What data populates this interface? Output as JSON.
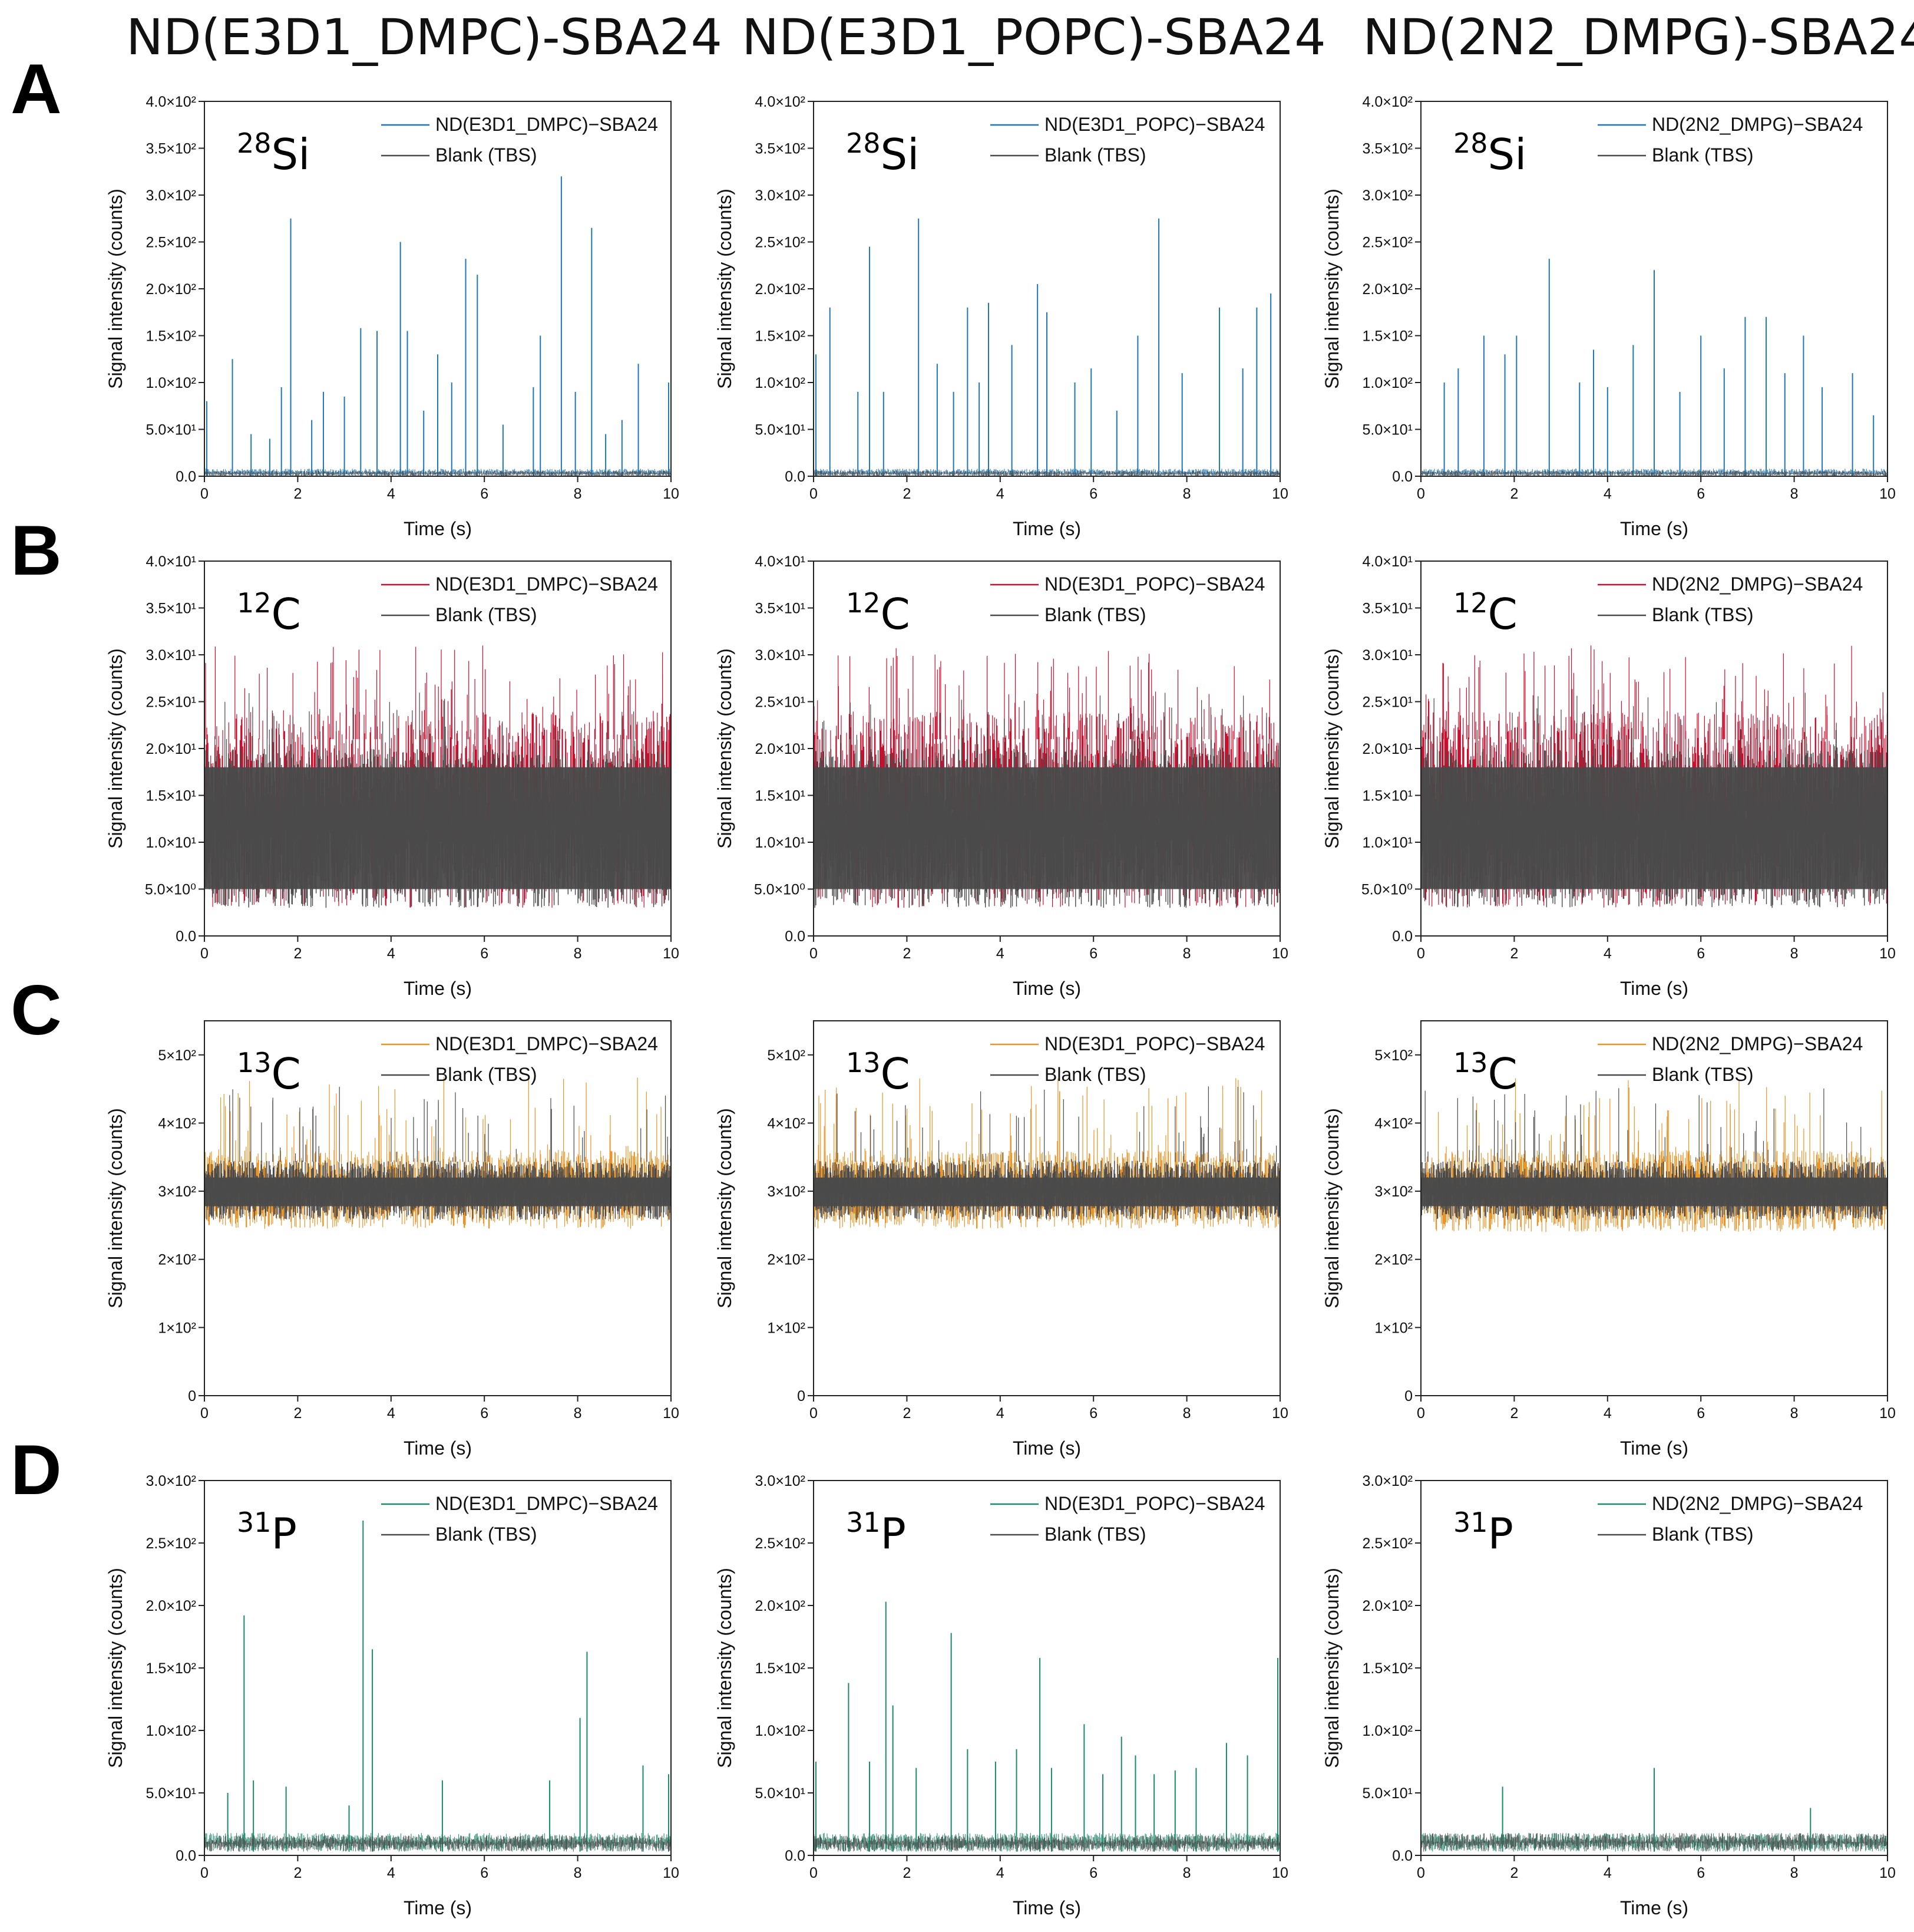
{
  "figure": {
    "column_titles": [
      "ND(E3D1_DMPC)-SBA24",
      "ND(E3D1_POPC)-SBA24",
      "ND(2N2_DMPG)-SBA24"
    ],
    "row_letters": [
      "A",
      "B",
      "C",
      "D"
    ],
    "xlabel": "Time (s)",
    "ylabel": "Signal intensity (counts)",
    "blank_legend": "Blank (TBS)",
    "colors": {
      "blank": "#4a4a4a",
      "Si": "#1f77b4",
      "C12": "#c8102e",
      "C13": "#e8952a",
      "P": "#1a8a6b"
    }
  },
  "chart_data": [
    {
      "type": "line",
      "row": "A",
      "panel": "A1",
      "isotope_mass": "28",
      "isotope_symbol": "Si",
      "color_key": "Si",
      "series": [
        {
          "name": "ND(E3D1_DMPC)−SBA24"
        },
        {
          "name": "Blank (TBS)"
        }
      ],
      "xlim": [
        0,
        10
      ],
      "ylim": [
        0,
        400
      ],
      "yticks": [
        0,
        50,
        100,
        150,
        200,
        250,
        300,
        350,
        400
      ],
      "ytick_labels": [
        "0.0",
        "5.0×10¹",
        "1.0×10²",
        "1.5×10²",
        "2.0×10²",
        "2.5×10²",
        "3.0×10²",
        "3.5×10²",
        "4.0×10²"
      ],
      "xticks": [
        0,
        2,
        4,
        6,
        8,
        10
      ],
      "baseline": [
        0,
        8
      ],
      "blank_band": [
        0,
        6
      ],
      "peaks": [
        [
          0.05,
          80
        ],
        [
          0.6,
          125
        ],
        [
          1.0,
          45
        ],
        [
          1.4,
          40
        ],
        [
          1.65,
          95
        ],
        [
          1.85,
          275
        ],
        [
          2.3,
          60
        ],
        [
          2.55,
          90
        ],
        [
          3.0,
          85
        ],
        [
          3.35,
          158
        ],
        [
          3.7,
          155
        ],
        [
          4.2,
          250
        ],
        [
          4.35,
          155
        ],
        [
          4.7,
          70
        ],
        [
          5.0,
          130
        ],
        [
          5.3,
          100
        ],
        [
          5.6,
          232
        ],
        [
          5.85,
          215
        ],
        [
          6.4,
          55
        ],
        [
          7.05,
          95
        ],
        [
          7.2,
          150
        ],
        [
          7.65,
          320
        ],
        [
          7.95,
          90
        ],
        [
          8.3,
          265
        ],
        [
          8.6,
          45
        ],
        [
          8.95,
          60
        ],
        [
          9.3,
          120
        ],
        [
          9.95,
          100
        ]
      ]
    },
    {
      "type": "line",
      "row": "A",
      "panel": "A2",
      "isotope_mass": "28",
      "isotope_symbol": "Si",
      "color_key": "Si",
      "series": [
        {
          "name": "ND(E3D1_POPC)−SBA24"
        },
        {
          "name": "Blank (TBS)"
        }
      ],
      "xlim": [
        0,
        10
      ],
      "ylim": [
        0,
        400
      ],
      "yticks": [
        0,
        50,
        100,
        150,
        200,
        250,
        300,
        350,
        400
      ],
      "ytick_labels": [
        "0.0",
        "5.0×10¹",
        "1.0×10²",
        "1.5×10²",
        "2.0×10²",
        "2.5×10²",
        "3.0×10²",
        "3.5×10²",
        "4.0×10²"
      ],
      "xticks": [
        0,
        2,
        4,
        6,
        8,
        10
      ],
      "baseline": [
        0,
        8
      ],
      "blank_band": [
        0,
        6
      ],
      "peaks": [
        [
          0.05,
          130
        ],
        [
          0.35,
          180
        ],
        [
          0.95,
          90
        ],
        [
          1.2,
          245
        ],
        [
          1.5,
          90
        ],
        [
          2.25,
          275
        ],
        [
          2.65,
          120
        ],
        [
          3.0,
          90
        ],
        [
          3.3,
          180
        ],
        [
          3.55,
          100
        ],
        [
          3.75,
          185
        ],
        [
          4.25,
          140
        ],
        [
          4.8,
          205
        ],
        [
          5.0,
          175
        ],
        [
          5.6,
          100
        ],
        [
          5.95,
          115
        ],
        [
          6.5,
          70
        ],
        [
          6.95,
          150
        ],
        [
          7.4,
          275
        ],
        [
          7.9,
          110
        ],
        [
          8.7,
          180
        ],
        [
          9.2,
          115
        ],
        [
          9.5,
          180
        ],
        [
          9.8,
          195
        ]
      ]
    },
    {
      "type": "line",
      "row": "A",
      "panel": "A3",
      "isotope_mass": "28",
      "isotope_symbol": "Si",
      "color_key": "Si",
      "series": [
        {
          "name": "ND(2N2_DMPG)−SBA24"
        },
        {
          "name": "Blank (TBS)"
        }
      ],
      "xlim": [
        0,
        10
      ],
      "ylim": [
        0,
        400
      ],
      "yticks": [
        0,
        50,
        100,
        150,
        200,
        250,
        300,
        350,
        400
      ],
      "ytick_labels": [
        "0.0",
        "5.0×10¹",
        "1.0×10²",
        "1.5×10²",
        "2.0×10²",
        "2.5×10²",
        "3.0×10²",
        "3.5×10²",
        "4.0×10²"
      ],
      "xticks": [
        0,
        2,
        4,
        6,
        8,
        10
      ],
      "baseline": [
        0,
        8
      ],
      "blank_band": [
        0,
        6
      ],
      "peaks": [
        [
          0.5,
          100
        ],
        [
          0.8,
          115
        ],
        [
          1.35,
          150
        ],
        [
          1.8,
          130
        ],
        [
          2.05,
          150
        ],
        [
          2.75,
          232
        ],
        [
          3.4,
          100
        ],
        [
          3.7,
          135
        ],
        [
          4.0,
          95
        ],
        [
          4.55,
          140
        ],
        [
          5.0,
          220
        ],
        [
          5.55,
          90
        ],
        [
          6.0,
          150
        ],
        [
          6.5,
          115
        ],
        [
          6.95,
          170
        ],
        [
          7.4,
          170
        ],
        [
          7.8,
          110
        ],
        [
          8.2,
          150
        ],
        [
          8.6,
          95
        ],
        [
          9.25,
          110
        ],
        [
          9.7,
          65
        ],
        [
          10.0,
          45
        ]
      ]
    },
    {
      "type": "line",
      "row": "B",
      "panel": "B1",
      "isotope_mass": "12",
      "isotope_symbol": "C",
      "color_key": "C12",
      "series": [
        {
          "name": "ND(E3D1_DMPC)−SBA24"
        },
        {
          "name": "Blank (TBS)"
        }
      ],
      "xlim": [
        0,
        10
      ],
      "ylim": [
        0,
        40
      ],
      "yticks": [
        0,
        5,
        10,
        15,
        20,
        25,
        30,
        35,
        40
      ],
      "ytick_labels": [
        "0.0",
        "5.0×10⁰",
        "1.0×10¹",
        "1.5×10¹",
        "2.0×10¹",
        "2.5×10¹",
        "3.0×10¹",
        "3.5×10¹",
        "4.0×10¹"
      ],
      "xticks": [
        0,
        2,
        4,
        6,
        8,
        10
      ],
      "baseline": [
        3,
        24
      ],
      "blank_band": [
        3,
        20
      ],
      "peaks": []
    },
    {
      "type": "line",
      "row": "B",
      "panel": "B2",
      "isotope_mass": "12",
      "isotope_symbol": "C",
      "color_key": "C12",
      "series": [
        {
          "name": "ND(E3D1_POPC)−SBA24"
        },
        {
          "name": "Blank (TBS)"
        }
      ],
      "xlim": [
        0,
        10
      ],
      "ylim": [
        0,
        40
      ],
      "yticks": [
        0,
        5,
        10,
        15,
        20,
        25,
        30,
        35,
        40
      ],
      "ytick_labels": [
        "0.0",
        "5.0×10⁰",
        "1.0×10¹",
        "1.5×10¹",
        "2.0×10¹",
        "2.5×10¹",
        "3.0×10¹",
        "3.5×10¹",
        "4.0×10¹"
      ],
      "xticks": [
        0,
        2,
        4,
        6,
        8,
        10
      ],
      "baseline": [
        3,
        24
      ],
      "blank_band": [
        3,
        20
      ],
      "peaks": []
    },
    {
      "type": "line",
      "row": "B",
      "panel": "B3",
      "isotope_mass": "12",
      "isotope_symbol": "C",
      "color_key": "C12",
      "series": [
        {
          "name": "ND(2N2_DMPG)−SBA24"
        },
        {
          "name": "Blank (TBS)"
        }
      ],
      "xlim": [
        0,
        10
      ],
      "ylim": [
        0,
        40
      ],
      "yticks": [
        0,
        5,
        10,
        15,
        20,
        25,
        30,
        35,
        40
      ],
      "ytick_labels": [
        "0.0",
        "5.0×10⁰",
        "1.0×10¹",
        "1.5×10¹",
        "2.0×10¹",
        "2.5×10¹",
        "3.0×10¹",
        "3.5×10¹",
        "4.0×10¹"
      ],
      "xticks": [
        0,
        2,
        4,
        6,
        8,
        10
      ],
      "baseline": [
        3,
        24
      ],
      "blank_band": [
        3,
        20
      ],
      "peaks": []
    },
    {
      "type": "line",
      "row": "C",
      "panel": "C1",
      "isotope_mass": "13",
      "isotope_symbol": "C",
      "color_key": "C13",
      "series": [
        {
          "name": "ND(E3D1_DMPC)−SBA24"
        },
        {
          "name": "Blank (TBS)"
        }
      ],
      "xlim": [
        0,
        10
      ],
      "ylim": [
        0,
        550
      ],
      "yticks": [
        0,
        100,
        200,
        300,
        400,
        500
      ],
      "ytick_labels": [
        "0",
        "1×10²",
        "2×10²",
        "3×10²",
        "4×10²",
        "5×10²"
      ],
      "xticks": [
        0,
        2,
        4,
        6,
        8,
        10
      ],
      "baseline": [
        245,
        360
      ],
      "blank_band": [
        258,
        345
      ],
      "peaks": []
    },
    {
      "type": "line",
      "row": "C",
      "panel": "C2",
      "isotope_mass": "13",
      "isotope_symbol": "C",
      "color_key": "C13",
      "series": [
        {
          "name": "ND(E3D1_POPC)−SBA24"
        },
        {
          "name": "Blank (TBS)"
        }
      ],
      "xlim": [
        0,
        10
      ],
      "ylim": [
        0,
        550
      ],
      "yticks": [
        0,
        100,
        200,
        300,
        400,
        500
      ],
      "ytick_labels": [
        "0",
        "1×10²",
        "2×10²",
        "3×10²",
        "4×10²",
        "5×10²"
      ],
      "xticks": [
        0,
        2,
        4,
        6,
        8,
        10
      ],
      "baseline": [
        245,
        360
      ],
      "blank_band": [
        258,
        345
      ],
      "peaks": []
    },
    {
      "type": "line",
      "row": "C",
      "panel": "C3",
      "isotope_mass": "13",
      "isotope_symbol": "C",
      "color_key": "C13",
      "series": [
        {
          "name": "ND(2N2_DMPG)−SBA24"
        },
        {
          "name": "Blank (TBS)"
        }
      ],
      "xlim": [
        0,
        10
      ],
      "ylim": [
        0,
        550
      ],
      "yticks": [
        0,
        100,
        200,
        300,
        400,
        500
      ],
      "ytick_labels": [
        "0",
        "1×10²",
        "2×10²",
        "3×10²",
        "4×10²",
        "5×10²"
      ],
      "xticks": [
        0,
        2,
        4,
        6,
        8,
        10
      ],
      "baseline": [
        240,
        360
      ],
      "blank_band": [
        258,
        345
      ],
      "peaks": []
    },
    {
      "type": "line",
      "row": "D",
      "panel": "D1",
      "isotope_mass": "31",
      "isotope_symbol": "P",
      "color_key": "P",
      "series": [
        {
          "name": "ND(E3D1_DMPC)−SBA24"
        },
        {
          "name": "Blank (TBS)"
        }
      ],
      "xlim": [
        0,
        10
      ],
      "ylim": [
        0,
        300
      ],
      "yticks": [
        0,
        50,
        100,
        150,
        200,
        250,
        300
      ],
      "ytick_labels": [
        "0.0",
        "5.0×10¹",
        "1.0×10²",
        "1.5×10²",
        "2.0×10²",
        "2.5×10²",
        "3.0×10²"
      ],
      "xticks": [
        0,
        2,
        4,
        6,
        8,
        10
      ],
      "baseline": [
        3,
        18
      ],
      "blank_band": [
        3,
        16
      ],
      "peaks": [
        [
          0.5,
          50
        ],
        [
          0.85,
          192
        ],
        [
          1.05,
          60
        ],
        [
          1.75,
          55
        ],
        [
          3.1,
          40
        ],
        [
          3.4,
          268
        ],
        [
          3.6,
          165
        ],
        [
          5.1,
          60
        ],
        [
          7.4,
          60
        ],
        [
          8.05,
          110
        ],
        [
          8.2,
          163
        ],
        [
          9.4,
          72
        ],
        [
          9.95,
          65
        ]
      ]
    },
    {
      "type": "line",
      "row": "D",
      "panel": "D2",
      "isotope_mass": "31",
      "isotope_symbol": "P",
      "color_key": "P",
      "series": [
        {
          "name": "ND(E3D1_POPC)−SBA24"
        },
        {
          "name": "Blank (TBS)"
        }
      ],
      "xlim": [
        0,
        10
      ],
      "ylim": [
        0,
        300
      ],
      "yticks": [
        0,
        50,
        100,
        150,
        200,
        250,
        300
      ],
      "ytick_labels": [
        "0.0",
        "5.0×10¹",
        "1.0×10²",
        "1.5×10²",
        "2.0×10²",
        "2.5×10²",
        "3.0×10²"
      ],
      "xticks": [
        0,
        2,
        4,
        6,
        8,
        10
      ],
      "baseline": [
        3,
        18
      ],
      "blank_band": [
        3,
        16
      ],
      "peaks": [
        [
          0.05,
          75
        ],
        [
          0.75,
          138
        ],
        [
          1.2,
          75
        ],
        [
          1.55,
          203
        ],
        [
          1.7,
          120
        ],
        [
          2.2,
          70
        ],
        [
          2.95,
          178
        ],
        [
          3.3,
          85
        ],
        [
          3.9,
          75
        ],
        [
          4.35,
          85
        ],
        [
          4.85,
          158
        ],
        [
          5.1,
          70
        ],
        [
          5.8,
          105
        ],
        [
          6.2,
          65
        ],
        [
          6.6,
          95
        ],
        [
          6.9,
          80
        ],
        [
          7.3,
          65
        ],
        [
          7.75,
          68
        ],
        [
          8.2,
          70
        ],
        [
          8.85,
          90
        ],
        [
          9.3,
          80
        ],
        [
          9.95,
          158
        ]
      ]
    },
    {
      "type": "line",
      "row": "D",
      "panel": "D3",
      "isotope_mass": "31",
      "isotope_symbol": "P",
      "color_key": "P",
      "series": [
        {
          "name": "ND(2N2_DMPG)−SBA24"
        },
        {
          "name": "Blank (TBS)"
        }
      ],
      "xlim": [
        0,
        10
      ],
      "ylim": [
        0,
        300
      ],
      "yticks": [
        0,
        50,
        100,
        150,
        200,
        250,
        300
      ],
      "ytick_labels": [
        "0.0",
        "5.0×10¹",
        "1.0×10²",
        "1.5×10²",
        "2.0×10²",
        "2.5×10²",
        "3.0×10²"
      ],
      "xticks": [
        0,
        2,
        4,
        6,
        8,
        10
      ],
      "baseline": [
        3,
        18
      ],
      "blank_band": [
        3,
        18
      ],
      "peaks": [
        [
          1.75,
          55
        ],
        [
          5.0,
          70
        ],
        [
          8.35,
          38
        ]
      ]
    }
  ]
}
